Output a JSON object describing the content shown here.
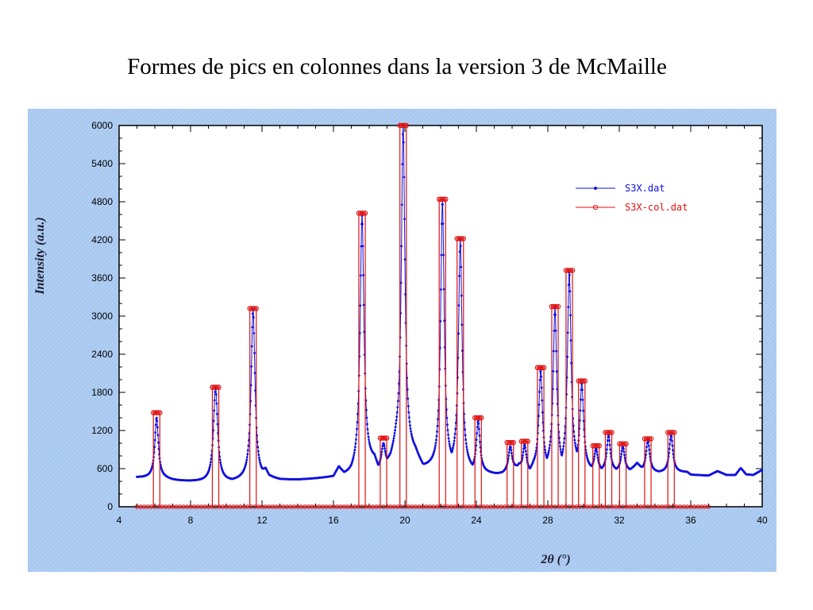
{
  "slide": {
    "title": "Formes de pics en colonnes dans la version 3 de McMaille"
  },
  "chart_data": {
    "type": "line",
    "xlabel": "2θ (°)",
    "ylabel": "Intensity (a.u.)",
    "xlim": [
      4,
      40
    ],
    "ylim": [
      0,
      6000
    ],
    "x_ticks": [
      4,
      8,
      12,
      16,
      20,
      24,
      28,
      32,
      36,
      40
    ],
    "y_ticks": [
      0,
      600,
      1200,
      1800,
      2400,
      3000,
      3600,
      4200,
      4800,
      5400,
      6000
    ],
    "grid": false,
    "legend_position": "top-right",
    "series": [
      {
        "name": "S3X.dat",
        "color": "#1010e0",
        "marker": "dot",
        "baseline_points": [
          [
            5.0,
            460
          ],
          [
            5.5,
            455
          ],
          [
            6.0,
            450
          ],
          [
            6.6,
            440
          ],
          [
            7.0,
            420
          ],
          [
            8.0,
            400
          ],
          [
            9.0,
            390
          ],
          [
            9.6,
            395
          ],
          [
            10.0,
            400
          ],
          [
            10.6,
            410
          ],
          [
            11.0,
            420
          ],
          [
            11.8,
            430
          ],
          [
            12.0,
            440
          ],
          [
            12.2,
            530
          ],
          [
            12.4,
            450
          ],
          [
            13.0,
            420
          ],
          [
            14.0,
            425
          ],
          [
            15.0,
            440
          ],
          [
            16.0,
            460
          ],
          [
            16.3,
            600
          ],
          [
            16.6,
            480
          ],
          [
            17.0,
            480
          ],
          [
            17.2,
            520
          ],
          [
            18.3,
            700
          ],
          [
            18.5,
            580
          ],
          [
            19.2,
            700
          ],
          [
            19.5,
            900
          ],
          [
            20.6,
            800
          ],
          [
            21.0,
            620
          ],
          [
            22.0,
            600
          ],
          [
            22.7,
            650
          ],
          [
            23.0,
            600
          ],
          [
            23.7,
            560
          ],
          [
            24.4,
            540
          ],
          [
            25.0,
            520
          ],
          [
            25.5,
            520
          ],
          [
            25.8,
            550
          ],
          [
            26.4,
            640
          ],
          [
            26.6,
            560
          ],
          [
            27.0,
            540
          ],
          [
            27.2,
            600
          ],
          [
            28.0,
            600
          ],
          [
            29.0,
            560
          ],
          [
            29.6,
            650
          ],
          [
            30.3,
            580
          ],
          [
            31.0,
            560
          ],
          [
            31.6,
            560
          ],
          [
            32.0,
            560
          ],
          [
            32.6,
            560
          ],
          [
            33.0,
            680
          ],
          [
            33.3,
            560
          ],
          [
            34.0,
            540
          ],
          [
            34.5,
            540
          ],
          [
            35.3,
            540
          ],
          [
            35.8,
            540
          ],
          [
            36.0,
            500
          ],
          [
            37.0,
            490
          ],
          [
            37.5,
            560
          ],
          [
            38.0,
            500
          ],
          [
            38.5,
            500
          ],
          [
            38.8,
            610
          ],
          [
            39.1,
            510
          ],
          [
            39.5,
            500
          ],
          [
            40.0,
            580
          ]
        ],
        "peaks": [
          {
            "x": 6.1,
            "y": 1400,
            "w": 0.12
          },
          {
            "x": 9.4,
            "y": 1880,
            "w": 0.14
          },
          {
            "x": 11.5,
            "y": 3100,
            "w": 0.13
          },
          {
            "x": 17.6,
            "y": 4580,
            "w": 0.13
          },
          {
            "x": 18.8,
            "y": 1000,
            "w": 0.13
          },
          {
            "x": 19.9,
            "y": 6000,
            "w": 0.12
          },
          {
            "x": 22.1,
            "y": 4800,
            "w": 0.12
          },
          {
            "x": 23.1,
            "y": 4200,
            "w": 0.12
          },
          {
            "x": 24.1,
            "y": 1350,
            "w": 0.12
          },
          {
            "x": 25.9,
            "y": 950,
            "w": 0.12
          },
          {
            "x": 26.7,
            "y": 980,
            "w": 0.12
          },
          {
            "x": 27.6,
            "y": 2150,
            "w": 0.12
          },
          {
            "x": 28.4,
            "y": 3120,
            "w": 0.12
          },
          {
            "x": 29.2,
            "y": 3700,
            "w": 0.12
          },
          {
            "x": 29.9,
            "y": 1950,
            "w": 0.12
          },
          {
            "x": 30.7,
            "y": 920,
            "w": 0.12
          },
          {
            "x": 31.4,
            "y": 1120,
            "w": 0.12
          },
          {
            "x": 32.2,
            "y": 950,
            "w": 0.12
          },
          {
            "x": 33.6,
            "y": 1050,
            "w": 0.12
          },
          {
            "x": 34.9,
            "y": 1130,
            "w": 0.12
          }
        ]
      },
      {
        "name": "S3X-col.dat",
        "color": "#e01010",
        "marker": "open-circle",
        "baseline_range": [
          5.0,
          37.0
        ],
        "baseline_value": 0,
        "peaks": [
          {
            "x": 6.1,
            "y": 1480,
            "w": 0.36
          },
          {
            "x": 9.4,
            "y": 1880,
            "w": 0.36
          },
          {
            "x": 11.5,
            "y": 3120,
            "w": 0.36
          },
          {
            "x": 17.6,
            "y": 4620,
            "w": 0.36
          },
          {
            "x": 18.8,
            "y": 1080,
            "w": 0.36
          },
          {
            "x": 19.9,
            "y": 6000,
            "w": 0.36
          },
          {
            "x": 22.1,
            "y": 4840,
            "w": 0.36
          },
          {
            "x": 23.1,
            "y": 4220,
            "w": 0.36
          },
          {
            "x": 24.1,
            "y": 1400,
            "w": 0.36
          },
          {
            "x": 25.9,
            "y": 1010,
            "w": 0.36
          },
          {
            "x": 26.7,
            "y": 1030,
            "w": 0.36
          },
          {
            "x": 27.6,
            "y": 2190,
            "w": 0.36
          },
          {
            "x": 28.4,
            "y": 3150,
            "w": 0.36
          },
          {
            "x": 29.2,
            "y": 3720,
            "w": 0.36
          },
          {
            "x": 29.9,
            "y": 1980,
            "w": 0.36
          },
          {
            "x": 30.7,
            "y": 960,
            "w": 0.36
          },
          {
            "x": 31.4,
            "y": 1170,
            "w": 0.36
          },
          {
            "x": 32.2,
            "y": 990,
            "w": 0.36
          },
          {
            "x": 33.6,
            "y": 1070,
            "w": 0.36
          },
          {
            "x": 34.9,
            "y": 1170,
            "w": 0.36
          }
        ]
      }
    ]
  }
}
